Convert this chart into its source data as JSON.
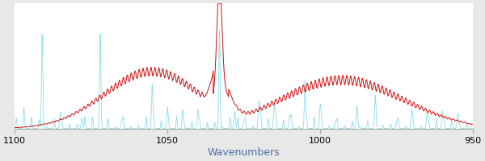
{
  "xmin": 1100,
  "xmax": 950,
  "ymin": 0,
  "ymax": 1.0,
  "xlabel": "Wavenumbers",
  "xlabel_color": "#4a6fa5",
  "background_color": "#e8e8e8",
  "plot_bg_color": "#ffffff",
  "cyan_color": "#7dd8e8",
  "red_color": "#cc0000",
  "linewidth_cyan": 0.6,
  "linewidth_red": 0.7,
  "xlabel_fontsize": 9,
  "tick_fontsize": 8,
  "figsize": [
    6.0,
    2.0
  ],
  "dpi": 100
}
